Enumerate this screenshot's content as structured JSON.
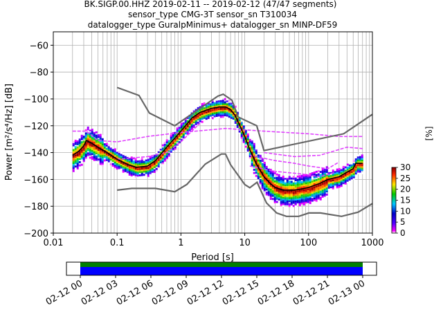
{
  "titles": {
    "line1": "BK.SIGP.00.HHZ   2019-02-11 -- 2019-02-12  (47/47 segments)",
    "line2": "sensor_type CMG-3T sensor_sn T310034",
    "line3": "datalogger_type GuralpMinimus+ datalogger_sn MINP-DF59"
  },
  "chart_data": {
    "type": "heatmap",
    "title": "BK.SIGP.00.HHZ   2019-02-11 -- 2019-02-12  (47/47 segments)",
    "xlabel": "Period [s]",
    "ylabel": "Power [m²/s⁴/Hz] [dB]",
    "xscale": "log",
    "xlim": [
      0.01,
      1000
    ],
    "ylim": [
      -200,
      -50
    ],
    "xticks": [
      {
        "v": 0.01,
        "label": "0.01"
      },
      {
        "v": 0.1,
        "label": "0.1"
      },
      {
        "v": 1,
        "label": "1"
      },
      {
        "v": 10,
        "label": "10"
      },
      {
        "v": 100,
        "label": "100"
      },
      {
        "v": 1000,
        "label": "1000"
      }
    ],
    "yticks": [
      {
        "v": -60,
        "label": "−60"
      },
      {
        "v": -80,
        "label": "−80"
      },
      {
        "v": -100,
        "label": "−100"
      },
      {
        "v": -120,
        "label": "−120"
      },
      {
        "v": -140,
        "label": "−140"
      },
      {
        "v": -160,
        "label": "−160"
      },
      {
        "v": -180,
        "label": "−180"
      },
      {
        "v": -200,
        "label": "−200"
      }
    ],
    "grid": true,
    "noise_models": {
      "nhnm": [
        [
          0.1,
          -91.5
        ],
        [
          0.22,
          -97.4
        ],
        [
          0.32,
          -110.5
        ],
        [
          0.8,
          -120
        ],
        [
          3.8,
          -97.9
        ],
        [
          4.6,
          -96.5
        ],
        [
          6.3,
          -101
        ],
        [
          7.9,
          -113.5
        ],
        [
          15.4,
          -120
        ],
        [
          20,
          -138.5
        ],
        [
          354.8,
          -126
        ],
        [
          1000,
          -111.5
        ]
      ],
      "nlnm": [
        [
          0.1,
          -168
        ],
        [
          0.17,
          -166.7
        ],
        [
          0.4,
          -166.7
        ],
        [
          0.8,
          -169.2
        ],
        [
          1.24,
          -163.7
        ],
        [
          2.4,
          -148.6
        ],
        [
          4.3,
          -141.1
        ],
        [
          5,
          -141.1
        ],
        [
          6,
          -149
        ],
        [
          10,
          -163.8
        ],
        [
          12,
          -166.2
        ],
        [
          15.6,
          -162.1
        ],
        [
          21.9,
          -177.5
        ],
        [
          31.6,
          -185
        ],
        [
          45,
          -187.5
        ],
        [
          70,
          -187.5
        ],
        [
          101,
          -185
        ],
        [
          154,
          -185
        ],
        [
          328,
          -187.5
        ],
        [
          600,
          -184.4
        ],
        [
          1000,
          -178
        ]
      ]
    },
    "median": [
      [
        0.02,
        -142
      ],
      [
        0.025,
        -139
      ],
      [
        0.03,
        -135
      ],
      [
        0.033,
        -131
      ],
      [
        0.04,
        -133
      ],
      [
        0.05,
        -136
      ],
      [
        0.07,
        -140
      ],
      [
        0.1,
        -145
      ],
      [
        0.15,
        -149
      ],
      [
        0.2,
        -151
      ],
      [
        0.3,
        -150
      ],
      [
        0.4,
        -146
      ],
      [
        0.6,
        -136
      ],
      [
        1,
        -124
      ],
      [
        1.5,
        -114
      ],
      [
        2,
        -110
      ],
      [
        3,
        -107
      ],
      [
        4,
        -106
      ],
      [
        5,
        -106
      ],
      [
        6,
        -108
      ],
      [
        7,
        -112
      ],
      [
        8,
        -118
      ],
      [
        10,
        -128
      ],
      [
        12,
        -138
      ],
      [
        15,
        -148
      ],
      [
        20,
        -158
      ],
      [
        25,
        -163
      ],
      [
        30,
        -166
      ],
      [
        40,
        -168
      ],
      [
        60,
        -168
      ],
      [
        80,
        -167
      ],
      [
        100,
        -166
      ],
      [
        150,
        -163
      ],
      [
        200,
        -160
      ],
      [
        300,
        -158
      ],
      [
        500,
        -152
      ],
      [
        550,
        -148
      ],
      [
        700,
        -148
      ]
    ],
    "upper_ridge": [
      [
        0.02,
        -124
      ],
      [
        0.033,
        -124
      ],
      [
        0.05,
        -131
      ],
      [
        0.1,
        -132
      ],
      [
        0.3,
        -128
      ],
      [
        1,
        -125
      ],
      [
        5,
        -122
      ],
      [
        20,
        -124
      ],
      [
        100,
        -126
      ],
      [
        300,
        -128
      ],
      [
        700,
        -128
      ]
    ],
    "scatter_lines": [
      [
        [
          0.1,
          -145
        ],
        [
          0.3,
          -143
        ],
        [
          0.6,
          -140
        ],
        [
          1,
          -132
        ],
        [
          2,
          -118
        ]
      ],
      [
        [
          12,
          -142
        ],
        [
          30,
          -146
        ],
        [
          60,
          -148
        ],
        [
          100,
          -150
        ],
        [
          200,
          -152
        ],
        [
          300,
          -147
        ]
      ],
      [
        [
          12,
          -150
        ],
        [
          30,
          -154
        ],
        [
          80,
          -156
        ],
        [
          150,
          -158
        ],
        [
          250,
          -155
        ]
      ],
      [
        [
          20,
          -140
        ],
        [
          60,
          -143
        ],
        [
          150,
          -142
        ],
        [
          400,
          -136
        ],
        [
          700,
          -137
        ]
      ]
    ],
    "colorbar": {
      "label": "[%]",
      "range": [
        0,
        30
      ],
      "ticks": [
        "0",
        "5",
        "10",
        "15",
        "20",
        "25",
        "30"
      ]
    },
    "timeline": {
      "xticks": [
        "02-12 00",
        "02-12 03",
        "02-12 06",
        "02-12 09",
        "02-12 12",
        "02-12 15",
        "02-12 18",
        "02-12 21",
        "02-13 00"
      ]
    }
  }
}
